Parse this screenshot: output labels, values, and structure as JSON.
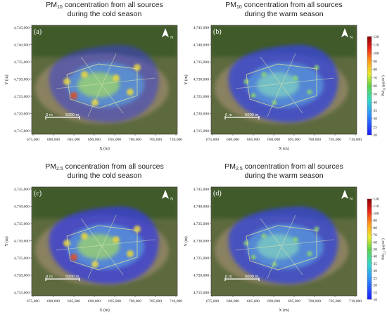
{
  "panels": [
    {
      "label": "(a)",
      "title": {
        "species": "PM",
        "subscript": "10",
        "line1": " concentration from all sources",
        "line2": "during the cold season"
      }
    },
    {
      "label": "(b)",
      "title": {
        "species": "PM",
        "subscript": "10",
        "line1": " concentration from all sources",
        "line2": "during the warm season"
      }
    },
    {
      "label": "(c)",
      "title": {
        "species": "PM",
        "subscript": "2.5",
        "line1": " concentration from all sources",
        "line2": "during the cold season"
      }
    },
    {
      "label": "(d)",
      "title": {
        "species": "PM",
        "subscript": "2.5",
        "line1": " concentration from all sources",
        "line2": "during the warm season"
      }
    }
  ],
  "axes": {
    "x_label": "X (m)",
    "y_label": "Y (m)",
    "x_ticks": [
      "675,000",
      "680,000",
      "685,000",
      "690,000",
      "695,000",
      "700,000",
      "705,000",
      "710,000"
    ],
    "y_ticks": [
      "4,715,000",
      "4,720,000",
      "4,725,000",
      "4,730,000",
      "4,735,000",
      "4,740,000",
      "4,745,000"
    ]
  },
  "north": "N",
  "scale_bar": {
    "start": "0 m",
    "end": "5000 m"
  },
  "colorbars": [
    {
      "species": "PM",
      "subscript": "10",
      "units": " (μg/m³)",
      "ticks": [
        "20",
        "25",
        "30",
        "35",
        "40",
        "50",
        "60",
        "70",
        "80",
        "90",
        "100",
        "110",
        "120"
      ]
    },
    {
      "species": "PM",
      "subscript": "2.5",
      "units": " (μg/m³)",
      "ticks": [
        "10",
        "15",
        "20",
        "25",
        "30",
        "35",
        "40",
        "50",
        "60",
        "70",
        "80",
        "90",
        "100",
        "110",
        "120"
      ]
    }
  ]
}
